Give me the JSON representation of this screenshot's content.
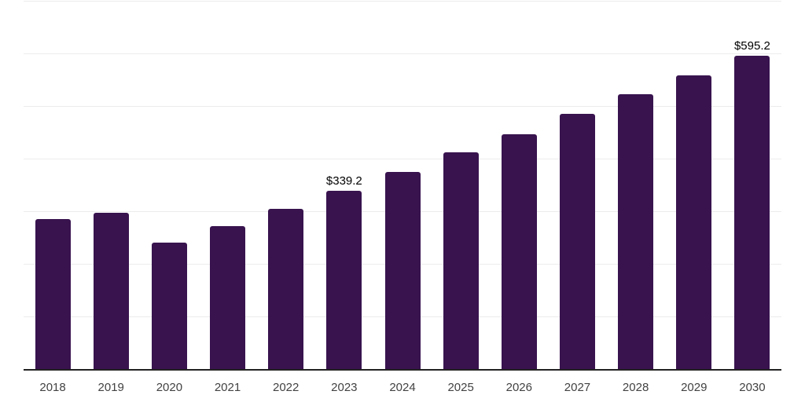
{
  "chart_data": {
    "type": "bar",
    "title": "",
    "categories": [
      "2018",
      "2019",
      "2020",
      "2021",
      "2022",
      "2023",
      "2024",
      "2025",
      "2026",
      "2027",
      "2028",
      "2029",
      "2030"
    ],
    "values": [
      285.8,
      297.0,
      240.3,
      271.6,
      304.5,
      339.2,
      374.6,
      411.2,
      446.3,
      485.1,
      523.1,
      558.9,
      595.2
    ],
    "data_labels": [
      {
        "category": "2023",
        "text": "$339.2"
      },
      {
        "category": "2030",
        "text": "$595.2"
      }
    ],
    "xlabel": "",
    "ylabel": "",
    "ylim": [
      0,
      700
    ],
    "gridline_step": 100,
    "grid": true,
    "legend": "none",
    "y_tick_labels_visible": false,
    "colors": {
      "bar": "#38134E",
      "gridline": "#ececec",
      "axis_line": "#222222",
      "x_tick_text": "#424242",
      "data_label_text": "#000000",
      "background": "#ffffff"
    }
  }
}
